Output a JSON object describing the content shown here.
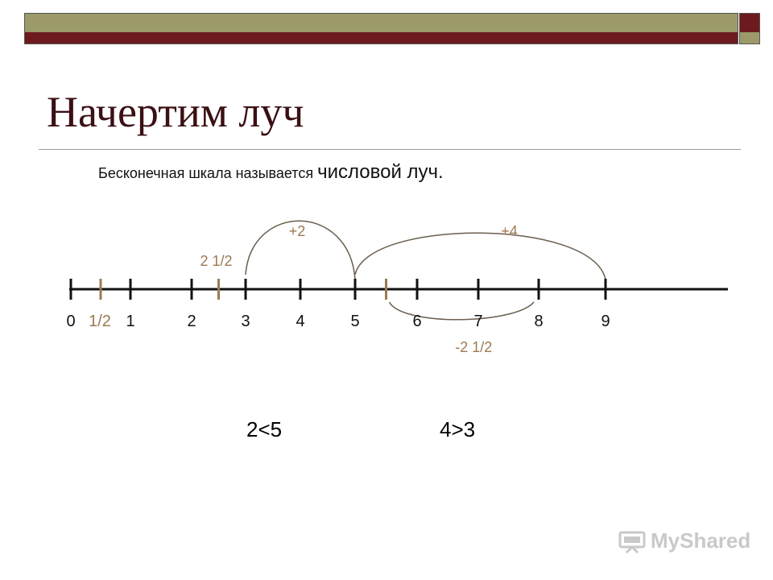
{
  "title": "Начертим луч",
  "subtitle": {
    "part1": "Бесконечная шкала называется ",
    "part2": "числовой луч."
  },
  "number_line": {
    "ticks": [
      0,
      1,
      2,
      3,
      4,
      5,
      6,
      7,
      8,
      9
    ],
    "half_ticks": [
      {
        "value": 0.5,
        "label": "1/2"
      },
      {
        "value": 2.5,
        "label": ""
      },
      {
        "value": 5.5,
        "label": ""
      }
    ],
    "arcs": [
      {
        "from": 3,
        "to": 5,
        "label": "+2",
        "side": "above"
      },
      {
        "from": 5,
        "to": 9,
        "label": "+4",
        "side": "above"
      },
      {
        "from": 5.5,
        "to": 8,
        "label": "-2 1/2",
        "side": "below"
      }
    ],
    "annotation": "2 1/2"
  },
  "inequalities": [
    "2<5",
    "4>3"
  ],
  "watermark": "MyShared",
  "colors": {
    "maroon": "#6d1a1f",
    "olive": "#9b9a68",
    "accent": "#9c7a52",
    "axis": "#111111"
  }
}
